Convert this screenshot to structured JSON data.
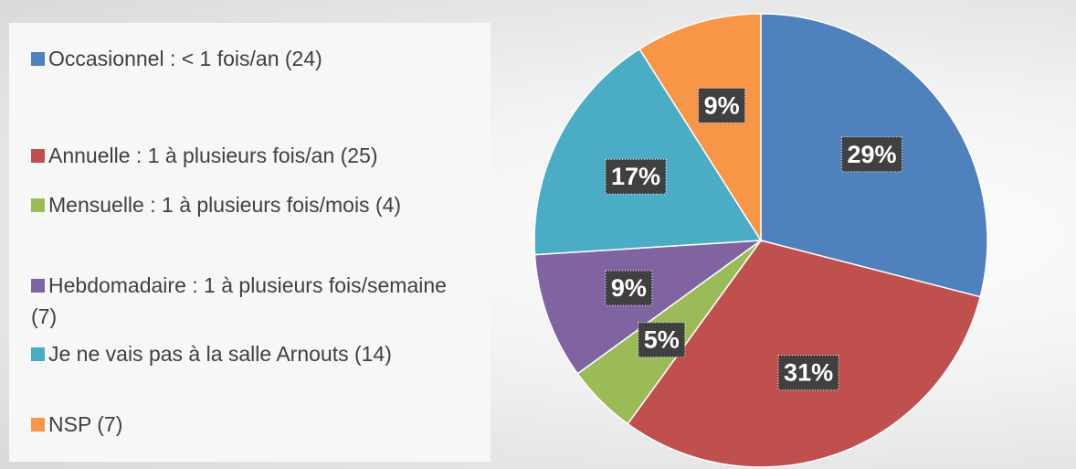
{
  "chart_data": {
    "type": "pie",
    "categories": [
      "Occasionnel : < 1 fois/an (24)",
      "Annuelle : 1 à plusieurs fois/an (25)",
      "Mensuelle : 1 à plusieurs fois/mois (4)",
      "Hebdomadaire : 1 à plusieurs fois/semaine (7)",
      "Je ne vais pas à la salle Arnouts (14)",
      "NSP (7)"
    ],
    "values": [
      29,
      31,
      5,
      9,
      17,
      9
    ],
    "value_labels": [
      "29%",
      "31%",
      "5%",
      "9%",
      "17%",
      "9%"
    ],
    "colors": [
      "#4f81bd",
      "#c0504d",
      "#9bbb59",
      "#8064a2",
      "#4bacc6",
      "#f79646"
    ],
    "legend": "left"
  }
}
